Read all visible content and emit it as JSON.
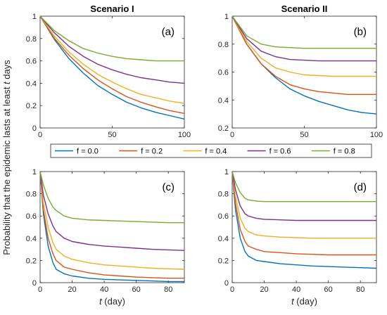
{
  "figure": {
    "ylabel_prefix": "Probability that the epidemic lasts at least ",
    "ylabel_var": "t",
    "ylabel_suffix": " days",
    "legend": [
      "f = 0.0",
      "f = 0.2",
      "f = 0.4",
      "f = 0.6",
      "f = 0.8"
    ],
    "colors": [
      "#0072BD",
      "#D95319",
      "#EDB120",
      "#7E2F8E",
      "#77AC30"
    ]
  },
  "chart_data": [
    {
      "type": "line",
      "panel_label": "(a)",
      "title": "Scenario I",
      "xlim": [
        0,
        100
      ],
      "ylim": [
        0,
        1
      ],
      "xticks": [
        0,
        50,
        100
      ],
      "yticks": [
        0,
        0.2,
        0.4,
        0.6,
        0.8,
        1
      ],
      "xlabel_var": "",
      "xlabel_unit": "",
      "x": [
        0,
        10,
        20,
        30,
        40,
        50,
        60,
        70,
        80,
        90,
        100
      ],
      "series": [
        {
          "name": "f = 0.0",
          "values": [
            1.0,
            0.79,
            0.62,
            0.49,
            0.38,
            0.3,
            0.23,
            0.18,
            0.14,
            0.11,
            0.08
          ]
        },
        {
          "name": "f = 0.2",
          "values": [
            1.0,
            0.8,
            0.65,
            0.53,
            0.43,
            0.35,
            0.28,
            0.23,
            0.19,
            0.155,
            0.13
          ]
        },
        {
          "name": "f = 0.4",
          "values": [
            1.0,
            0.82,
            0.68,
            0.57,
            0.48,
            0.41,
            0.35,
            0.3,
            0.27,
            0.24,
            0.22
          ]
        },
        {
          "name": "f = 0.6",
          "values": [
            1.0,
            0.85,
            0.73,
            0.64,
            0.57,
            0.52,
            0.48,
            0.45,
            0.43,
            0.41,
            0.4
          ]
        },
        {
          "name": "f = 0.8",
          "values": [
            1.0,
            0.87,
            0.78,
            0.71,
            0.67,
            0.64,
            0.62,
            0.61,
            0.6,
            0.6,
            0.6
          ]
        }
      ]
    },
    {
      "type": "line",
      "panel_label": "(b)",
      "title": "Scenario II",
      "xlim": [
        0,
        100
      ],
      "ylim": [
        0.2,
        1
      ],
      "xticks": [
        0,
        50,
        100
      ],
      "yticks": [
        0.2,
        0.4,
        0.6,
        0.8,
        1
      ],
      "xlabel_var": "",
      "xlabel_unit": "",
      "x": [
        0,
        10,
        20,
        30,
        40,
        50,
        60,
        70,
        80,
        90,
        100
      ],
      "series": [
        {
          "name": "f = 0.0",
          "values": [
            1.0,
            0.8,
            0.66,
            0.56,
            0.48,
            0.43,
            0.39,
            0.36,
            0.33,
            0.31,
            0.3
          ]
        },
        {
          "name": "f = 0.2",
          "values": [
            1.0,
            0.8,
            0.66,
            0.57,
            0.51,
            0.48,
            0.46,
            0.45,
            0.44,
            0.44,
            0.44
          ]
        },
        {
          "name": "f = 0.4",
          "values": [
            1.0,
            0.82,
            0.7,
            0.63,
            0.6,
            0.58,
            0.575,
            0.57,
            0.57,
            0.57,
            0.57
          ]
        },
        {
          "name": "f = 0.6",
          "values": [
            1.0,
            0.84,
            0.75,
            0.71,
            0.69,
            0.685,
            0.68,
            0.68,
            0.68,
            0.68,
            0.68
          ]
        },
        {
          "name": "f = 0.8",
          "values": [
            1.0,
            0.86,
            0.8,
            0.78,
            0.775,
            0.77,
            0.77,
            0.77,
            0.77,
            0.77,
            0.77
          ]
        }
      ]
    },
    {
      "type": "line",
      "panel_label": "(c)",
      "title": "",
      "xlim": [
        0,
        90
      ],
      "ylim": [
        0,
        1
      ],
      "xticks": [
        0,
        20,
        40,
        60,
        80
      ],
      "yticks": [
        0,
        0.2,
        0.4,
        0.6,
        0.8,
        1
      ],
      "xlabel_var": "t",
      "xlabel_unit": " (day)",
      "x": [
        0,
        2,
        5,
        8,
        10,
        15,
        20,
        30,
        40,
        50,
        60,
        70,
        80,
        90
      ],
      "series": [
        {
          "name": "f = 0.0",
          "values": [
            1.0,
            0.62,
            0.33,
            0.18,
            0.12,
            0.08,
            0.06,
            0.04,
            0.03,
            0.025,
            0.02,
            0.015,
            0.01,
            0.01
          ]
        },
        {
          "name": "f = 0.2",
          "values": [
            1.0,
            0.66,
            0.4,
            0.26,
            0.2,
            0.14,
            0.12,
            0.09,
            0.07,
            0.06,
            0.05,
            0.045,
            0.04,
            0.04
          ]
        },
        {
          "name": "f = 0.4",
          "values": [
            1.0,
            0.72,
            0.5,
            0.36,
            0.3,
            0.24,
            0.21,
            0.18,
            0.16,
            0.15,
            0.14,
            0.13,
            0.125,
            0.12
          ]
        },
        {
          "name": "f = 0.6",
          "values": [
            1.0,
            0.79,
            0.62,
            0.51,
            0.46,
            0.4,
            0.37,
            0.345,
            0.33,
            0.32,
            0.31,
            0.3,
            0.295,
            0.29
          ]
        },
        {
          "name": "f = 0.8",
          "values": [
            1.0,
            0.88,
            0.76,
            0.68,
            0.65,
            0.6,
            0.58,
            0.565,
            0.56,
            0.555,
            0.55,
            0.545,
            0.54,
            0.54
          ]
        }
      ]
    },
    {
      "type": "line",
      "panel_label": "(d)",
      "title": "",
      "xlim": [
        0,
        90
      ],
      "ylim": [
        0,
        1
      ],
      "xticks": [
        0,
        20,
        40,
        60,
        80
      ],
      "yticks": [
        0,
        0.2,
        0.4,
        0.6,
        0.8,
        1
      ],
      "xlabel_var": "t",
      "xlabel_unit": " (day)",
      "x": [
        0,
        2,
        5,
        8,
        10,
        15,
        20,
        30,
        40,
        50,
        60,
        70,
        80,
        90
      ],
      "series": [
        {
          "name": "f = 0.0",
          "values": [
            1.0,
            0.66,
            0.4,
            0.28,
            0.24,
            0.2,
            0.19,
            0.17,
            0.16,
            0.15,
            0.145,
            0.14,
            0.135,
            0.13
          ]
        },
        {
          "name": "f = 0.2",
          "values": [
            1.0,
            0.72,
            0.48,
            0.37,
            0.33,
            0.3,
            0.28,
            0.27,
            0.26,
            0.255,
            0.25,
            0.25,
            0.25,
            0.25
          ]
        },
        {
          "name": "f = 0.4",
          "values": [
            1.0,
            0.78,
            0.58,
            0.49,
            0.46,
            0.43,
            0.42,
            0.41,
            0.405,
            0.4,
            0.4,
            0.4,
            0.4,
            0.4
          ]
        },
        {
          "name": "f = 0.6",
          "values": [
            1.0,
            0.84,
            0.69,
            0.62,
            0.6,
            0.58,
            0.57,
            0.565,
            0.56,
            0.56,
            0.56,
            0.56,
            0.56,
            0.56
          ]
        },
        {
          "name": "f = 0.8",
          "values": [
            1.0,
            0.9,
            0.81,
            0.76,
            0.745,
            0.735,
            0.73,
            0.73,
            0.73,
            0.73,
            0.73,
            0.73,
            0.73,
            0.73
          ]
        }
      ]
    }
  ]
}
